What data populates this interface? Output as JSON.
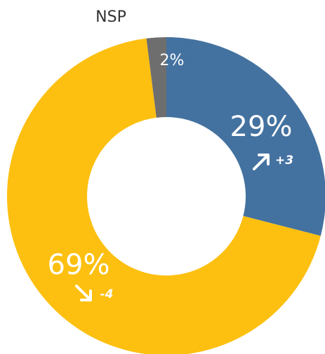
{
  "chart_data": {
    "type": "donut",
    "categories": [
      null,
      null,
      "NSP"
    ],
    "values": [
      29,
      69,
      2
    ],
    "value_labels": [
      "29%",
      "69%",
      "2%"
    ],
    "change_labels": [
      "+3",
      "-4",
      null
    ],
    "colors": [
      "#4472a0",
      "#fdc010",
      "#6e6e6e"
    ]
  }
}
